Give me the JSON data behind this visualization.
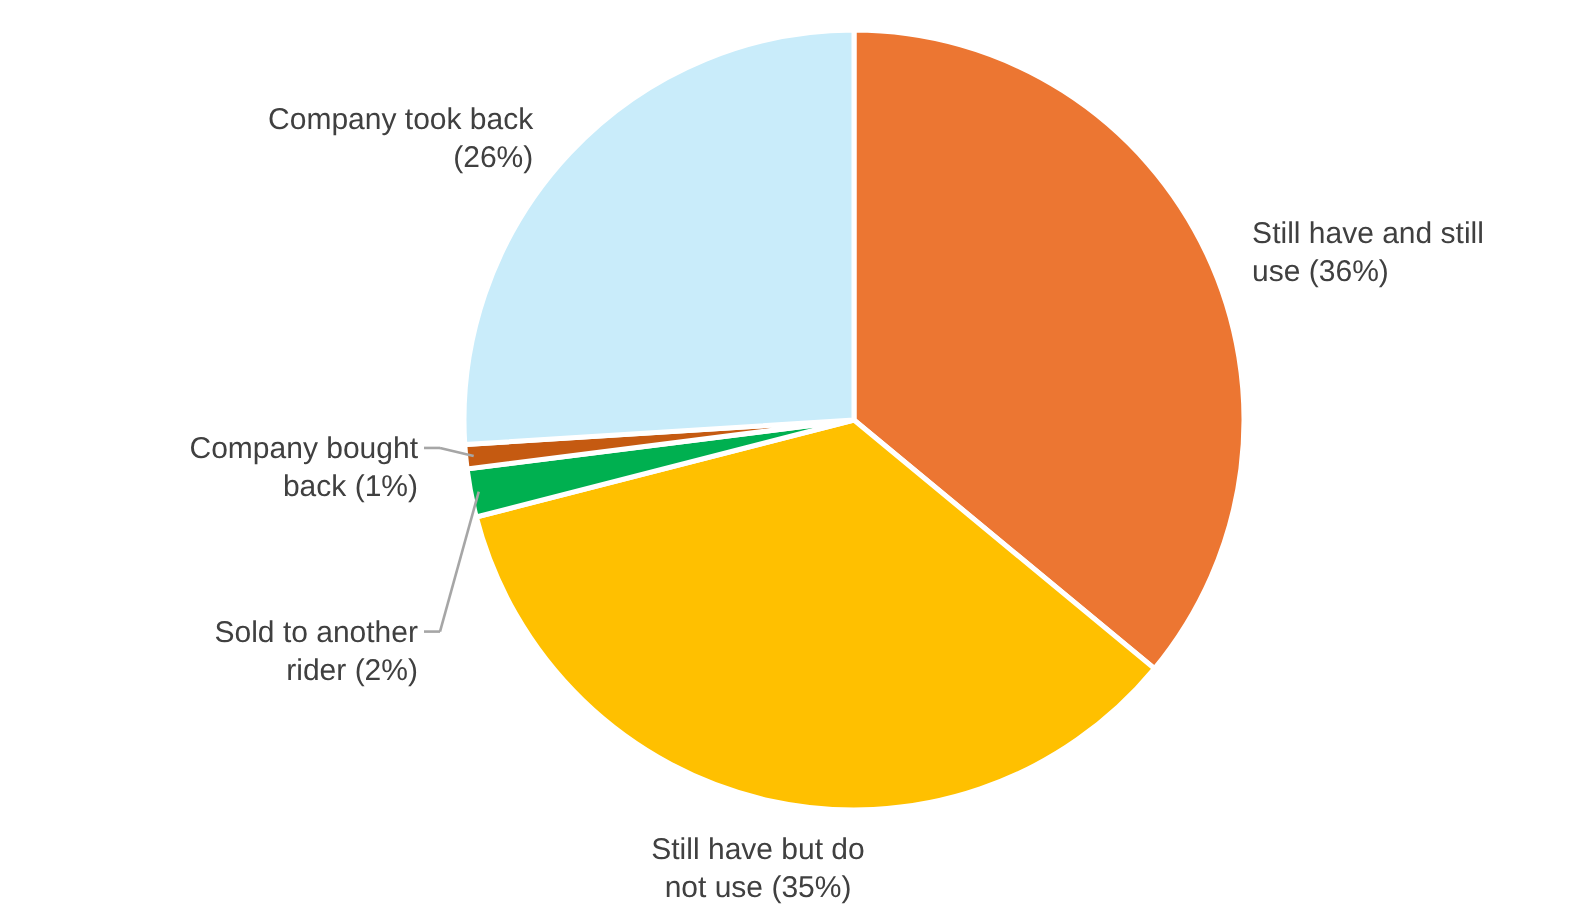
{
  "chart_data": {
    "type": "pie",
    "categories": [
      "Still have and still use (36%)",
      "Still have but do not use (35%)",
      "Sold to another rider (2%)",
      "Company bought back (1%)",
      "Company took back (26%)"
    ],
    "values": [
      36,
      35,
      2,
      1,
      26
    ],
    "colors": [
      "#ec7632",
      "#ffc000",
      "#00b050",
      "#c55a11",
      "#c9ecfa"
    ]
  }
}
